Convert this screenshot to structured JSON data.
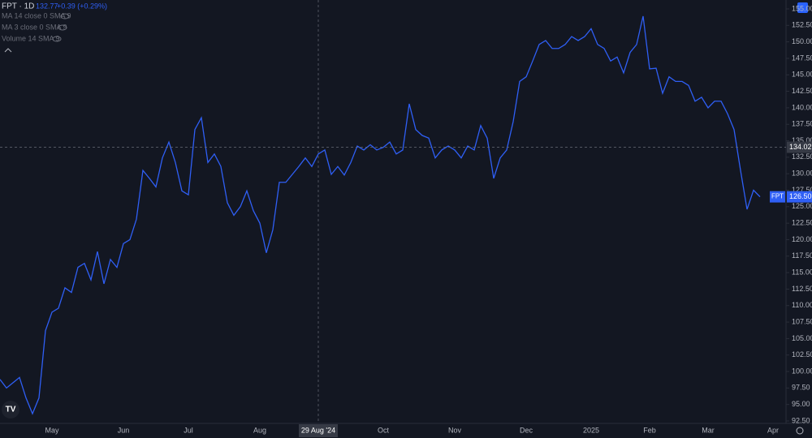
{
  "chart_data": {
    "type": "line",
    "title": "FPT · 1D",
    "last_close": 132.77,
    "change": "+0.39 (+0.29%)",
    "indicators": [
      "MA 14 close 0 SMA 9",
      "MA 3 close 0 SMA 9",
      "Volume 14 SMA 9"
    ],
    "categories": [
      null,
      null,
      null,
      null,
      null,
      null,
      null,
      null,
      "May",
      null,
      null,
      null,
      null,
      null,
      null,
      null,
      null,
      null,
      null,
      "Jun",
      null,
      null,
      null,
      null,
      null,
      null,
      null,
      null,
      null,
      "Jul",
      null,
      null,
      null,
      null,
      null,
      null,
      null,
      null,
      null,
      null,
      "Aug",
      null,
      null,
      null,
      null,
      null,
      null,
      null,
      null,
      "29 Aug '24",
      null,
      null,
      null,
      null,
      null,
      null,
      null,
      null,
      null,
      "Oct",
      null,
      null,
      null,
      null,
      null,
      null,
      null,
      null,
      null,
      null,
      "Nov",
      null,
      null,
      null,
      null,
      null,
      null,
      null,
      null,
      null,
      null,
      "Dec",
      null,
      null,
      null,
      null,
      null,
      null,
      null,
      null,
      null,
      "2025",
      null,
      null,
      null,
      null,
      null,
      null,
      null,
      null,
      "Feb",
      null,
      null,
      null,
      null,
      null,
      null,
      null,
      null,
      "Mar",
      null,
      null,
      null,
      null,
      null,
      null,
      null,
      null,
      null,
      "Apr"
    ],
    "series": [
      {
        "name": "FPT",
        "color": "#2f5ff5",
        "values": [
          98.8,
          97.5,
          98.3,
          99.1,
          96.0,
          93.6,
          96.0,
          106.2,
          109.0,
          109.6,
          112.7,
          112.0,
          115.8,
          116.4,
          113.9,
          118.2,
          113.3,
          117.0,
          115.8,
          119.4,
          120.0,
          123.1,
          130.5,
          129.3,
          128.0,
          132.4,
          134.8,
          131.7,
          127.4,
          126.8,
          136.7,
          138.5,
          131.7,
          133.0,
          131.1,
          125.6,
          123.7,
          125.0,
          127.4,
          124.4,
          122.5,
          118.0,
          121.5,
          128.7,
          128.7,
          129.9,
          131.1,
          132.4,
          131.1,
          133.0,
          133.6,
          129.9,
          131.1,
          129.8,
          131.7,
          134.2,
          133.6,
          134.4,
          133.6,
          134.0,
          134.8,
          133.0,
          133.6,
          140.6,
          136.7,
          135.8,
          135.4,
          132.4,
          133.6,
          134.2,
          133.6,
          132.4,
          134.2,
          133.6,
          137.3,
          135.4,
          129.3,
          132.4,
          133.6,
          137.9,
          144.0,
          144.7,
          147.1,
          149.6,
          150.2,
          149.0,
          149.0,
          149.6,
          150.8,
          150.2,
          150.8,
          152.0,
          149.6,
          149.0,
          147.1,
          147.7,
          145.3,
          148.4,
          149.6,
          153.9,
          145.9,
          146.0,
          142.2,
          144.7,
          144.0,
          144.0,
          143.4,
          141.0,
          141.6,
          140.0,
          141.0,
          141.0,
          139.1,
          136.7,
          130.5,
          124.6,
          127.5,
          126.5,
          null,
          null
        ]
      }
    ],
    "ylim": [
      92.13,
      156.35
    ],
    "yticks": [
      {
        "value": 92.5,
        "label": "92.50"
      },
      {
        "value": 95,
        "label": "95.00"
      },
      {
        "value": 97.5,
        "label": "97.50"
      },
      {
        "value": 100,
        "label": "100.00"
      },
      {
        "value": 102.5,
        "label": "102.50"
      },
      {
        "value": 105,
        "label": "105.00"
      },
      {
        "value": 107.5,
        "label": "107.50"
      },
      {
        "value": 110,
        "label": "110.00"
      },
      {
        "value": 112.5,
        "label": "112.50"
      },
      {
        "value": 115,
        "label": "115.00"
      },
      {
        "value": 117.5,
        "label": "117.50"
      },
      {
        "value": 120,
        "label": "120.00"
      },
      {
        "value": 122.5,
        "label": "122.50"
      },
      {
        "value": 125,
        "label": "125.00"
      },
      {
        "value": 127.5,
        "label": "127.50"
      },
      {
        "value": 130,
        "label": "130.00"
      },
      {
        "value": 132.5,
        "label": "132.50"
      },
      {
        "value": 135,
        "label": "135.00"
      },
      {
        "value": 137.5,
        "label": "137.50"
      },
      {
        "value": 140,
        "label": "140.00"
      },
      {
        "value": 142.5,
        "label": "142.50"
      },
      {
        "value": 145,
        "label": "145.00"
      },
      {
        "value": 147.5,
        "label": "147.50"
      },
      {
        "value": 150,
        "label": "150.00"
      },
      {
        "value": 152.5,
        "label": "152.50"
      },
      {
        "value": 155,
        "label": "155.00"
      }
    ],
    "crosshair": {
      "x": "29 Aug '24",
      "y": 134.02
    },
    "last_price": {
      "symbol": "FPT",
      "value": 126.5,
      "label": "126.50"
    }
  }
}
